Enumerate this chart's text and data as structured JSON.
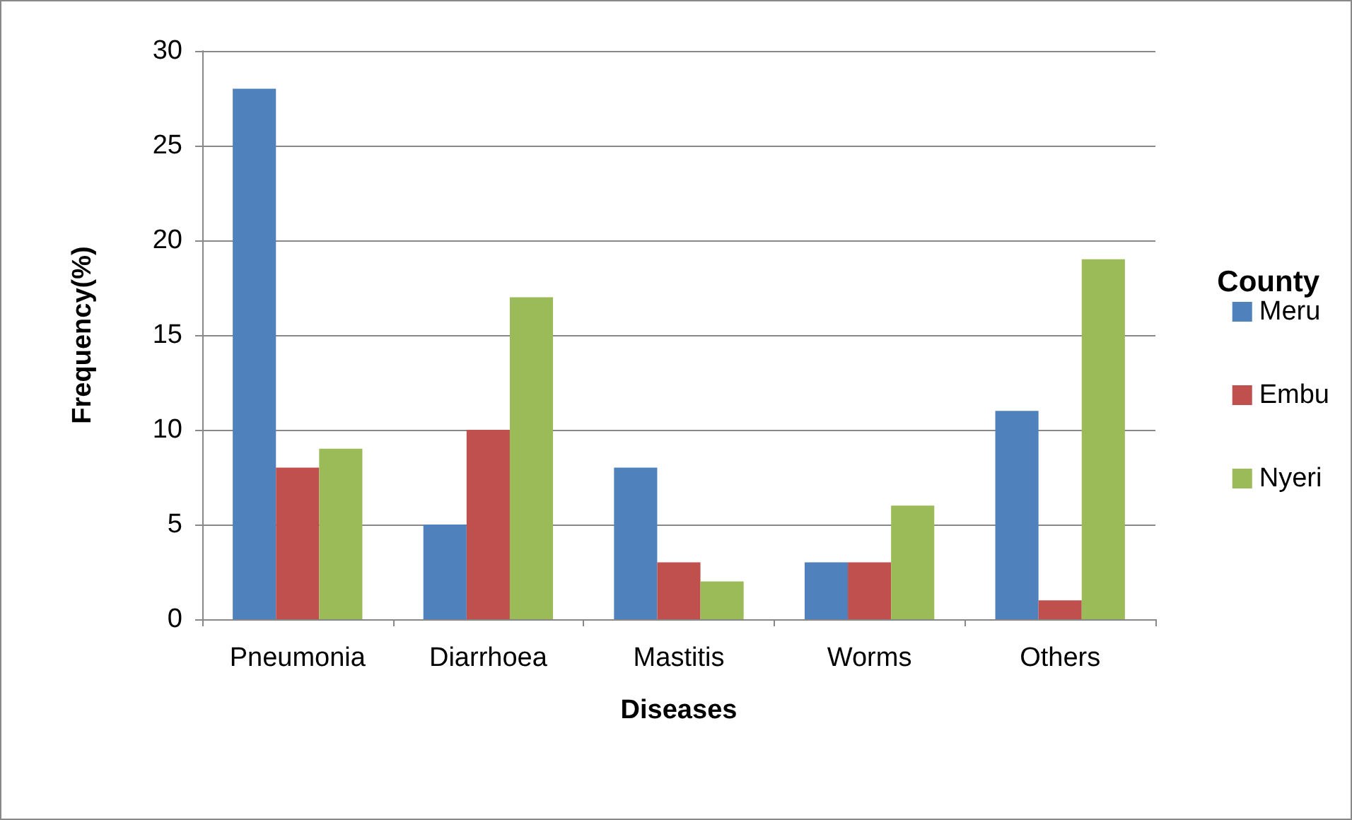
{
  "chart_data": {
    "type": "bar",
    "xlabel": "Diseases",
    "ylabel": "Frequency(%)",
    "legend_title": "County",
    "categories": [
      "Pneumonia",
      "Diarrhoea",
      "Mastitis",
      "Worms",
      "Others"
    ],
    "series": [
      {
        "name": "Meru",
        "color": "#4f81bd",
        "values": [
          28,
          5,
          8,
          3,
          11
        ]
      },
      {
        "name": "Embu",
        "color": "#c0504d",
        "values": [
          8,
          10,
          3,
          3,
          1
        ]
      },
      {
        "name": "Nyeri",
        "color": "#9bbb59",
        "values": [
          9,
          17,
          2,
          6,
          19
        ]
      }
    ],
    "ylim": [
      0,
      30
    ],
    "yticks": [
      0,
      5,
      10,
      15,
      20,
      25,
      30
    ],
    "grid": "y",
    "legend": "right"
  }
}
